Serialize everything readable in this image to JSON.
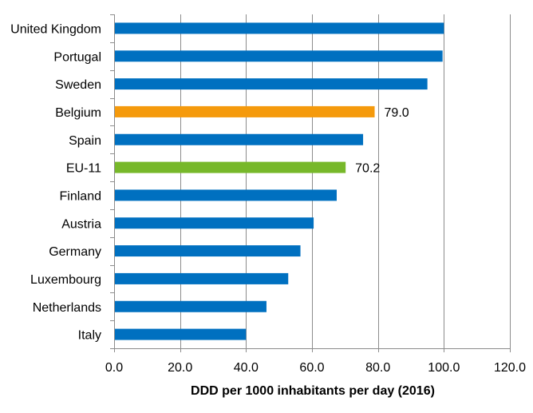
{
  "chart_data": {
    "type": "bar",
    "orientation": "horizontal",
    "categories": [
      "United Kingdom",
      "Portugal",
      "Sweden",
      "Belgium",
      "Spain",
      "EU-11",
      "Finland",
      "Austria",
      "Germany",
      "Luxembourg",
      "Netherlands",
      "Italy"
    ],
    "values": [
      100.0,
      99.6,
      95.0,
      79.0,
      75.5,
      70.2,
      67.5,
      60.5,
      56.5,
      52.8,
      46.2,
      40.0
    ],
    "bar_colors": [
      "#0070c0",
      "#0070c0",
      "#0070c0",
      "#f59a0c",
      "#0070c0",
      "#77b82a",
      "#0070c0",
      "#0070c0",
      "#0070c0",
      "#0070c0",
      "#0070c0",
      "#0070c0"
    ],
    "data_labels": [
      {
        "category": "Belgium",
        "text": "79.0"
      },
      {
        "category": "EU-11",
        "text": "70.2"
      }
    ],
    "xlabel": "DDD per 1000 inhabitants per day (2016)",
    "ylabel": "",
    "xlim": [
      0,
      120
    ],
    "xticks": [
      0,
      20,
      40,
      60,
      80,
      100,
      120
    ],
    "xtick_labels": [
      "0.0",
      "20.0",
      "40.0",
      "60.0",
      "80.0",
      "100.0",
      "120.0"
    ],
    "grid": true,
    "legend": "none"
  }
}
